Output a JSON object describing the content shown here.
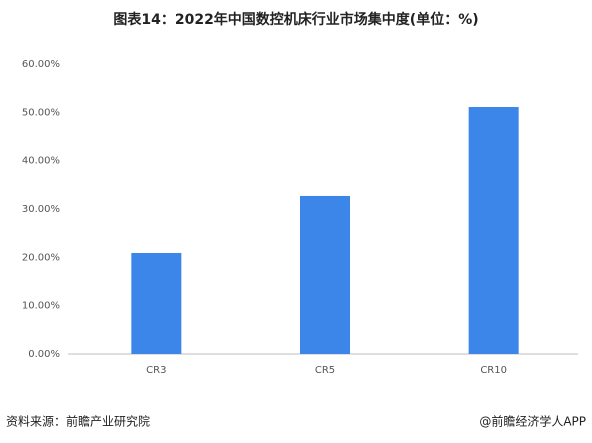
{
  "chart_data": {
    "type": "bar",
    "title": "图表14：2022年中国数控机床行业市场集中度(单位：%)",
    "categories": [
      "CR3",
      "CR5",
      "CR10"
    ],
    "values": [
      20.9,
      32.7,
      51.1
    ],
    "color": "#3b86e8",
    "ylim": [
      0,
      60
    ],
    "yticks": [
      {
        "value": 0,
        "label": "0.00%"
      },
      {
        "value": 10,
        "label": "10.00%"
      },
      {
        "value": 20,
        "label": "20.00%"
      },
      {
        "value": 30,
        "label": "30.00%"
      },
      {
        "value": 40,
        "label": "40.00%"
      },
      {
        "value": 50,
        "label": "50.00%"
      },
      {
        "value": 60,
        "label": "60.00%"
      }
    ],
    "grid": false,
    "source": "资料来源：前瞻产业研究院",
    "credit": "@前瞻经济学人APP"
  }
}
